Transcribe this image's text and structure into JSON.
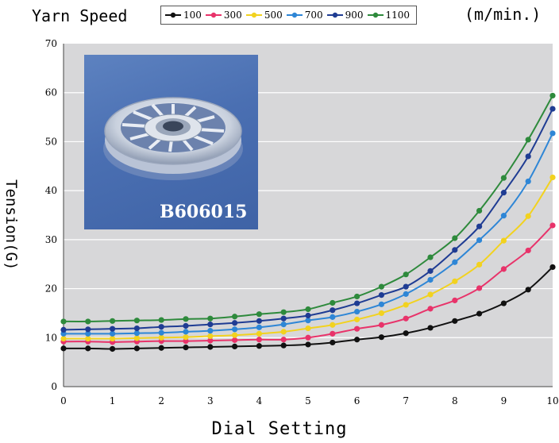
{
  "chart_data": {
    "type": "line",
    "title": "Yarn Speed",
    "units": "(m/min.)",
    "xlabel": "Dial Setting",
    "ylabel": "Tension(G)",
    "xlim": [
      0,
      10
    ],
    "ylim": [
      0,
      70
    ],
    "x": [
      0,
      0.5,
      1,
      1.5,
      2,
      2.5,
      3,
      3.5,
      4,
      4.5,
      5,
      5.5,
      6,
      6.5,
      7,
      7.5,
      8,
      8.5,
      9,
      9.5,
      10
    ],
    "xticks": [
      "0",
      "1",
      "2",
      "3",
      "4",
      "5",
      "6",
      "7",
      "8",
      "9",
      "10"
    ],
    "yticks": [
      "0",
      "10",
      "20",
      "30",
      "40",
      "50",
      "60",
      "70"
    ],
    "grid": true,
    "legend_position": "top",
    "series": [
      {
        "name": "100",
        "color": "#111111",
        "values": [
          7.8,
          7.8,
          7.7,
          7.8,
          7.9,
          8.0,
          8.1,
          8.2,
          8.3,
          8.4,
          8.6,
          9.0,
          9.6,
          10.1,
          10.9,
          12.0,
          13.4,
          14.9,
          17.0,
          19.8,
          24.4
        ]
      },
      {
        "name": "300",
        "color": "#e8336a",
        "values": [
          9.2,
          9.2,
          9.1,
          9.2,
          9.3,
          9.3,
          9.4,
          9.5,
          9.6,
          9.6,
          10.0,
          10.8,
          11.8,
          12.6,
          13.9,
          15.9,
          17.6,
          20.1,
          24.0,
          27.8,
          32.9
        ]
      },
      {
        "name": "500",
        "color": "#f2d21f",
        "values": [
          9.8,
          9.8,
          9.8,
          9.9,
          10.0,
          10.1,
          10.3,
          10.5,
          10.8,
          11.2,
          11.9,
          12.6,
          13.7,
          15.0,
          16.7,
          18.8,
          21.5,
          24.9,
          29.8,
          34.8,
          42.7
        ]
      },
      {
        "name": "700",
        "color": "#2e86d6",
        "values": [
          10.8,
          10.8,
          10.8,
          10.9,
          11.0,
          11.2,
          11.4,
          11.7,
          12.1,
          12.7,
          13.5,
          14.2,
          15.3,
          16.8,
          18.9,
          21.8,
          25.4,
          29.9,
          34.9,
          41.9,
          51.7
        ]
      },
      {
        "name": "900",
        "color": "#1f3c93",
        "values": [
          11.6,
          11.7,
          11.8,
          11.9,
          12.2,
          12.4,
          12.7,
          13.0,
          13.4,
          13.9,
          14.5,
          15.6,
          17.0,
          18.7,
          20.4,
          23.6,
          27.9,
          32.7,
          39.6,
          47.0,
          56.7
        ]
      },
      {
        "name": "1100",
        "color": "#2e8a3c",
        "values": [
          13.3,
          13.3,
          13.4,
          13.5,
          13.6,
          13.8,
          13.9,
          14.3,
          14.8,
          15.2,
          15.8,
          17.1,
          18.4,
          20.4,
          22.9,
          26.4,
          30.3,
          35.9,
          42.6,
          50.4,
          59.4
        ]
      }
    ]
  },
  "photo": {
    "label": "B606015",
    "background_color": "#4a6fb2"
  }
}
